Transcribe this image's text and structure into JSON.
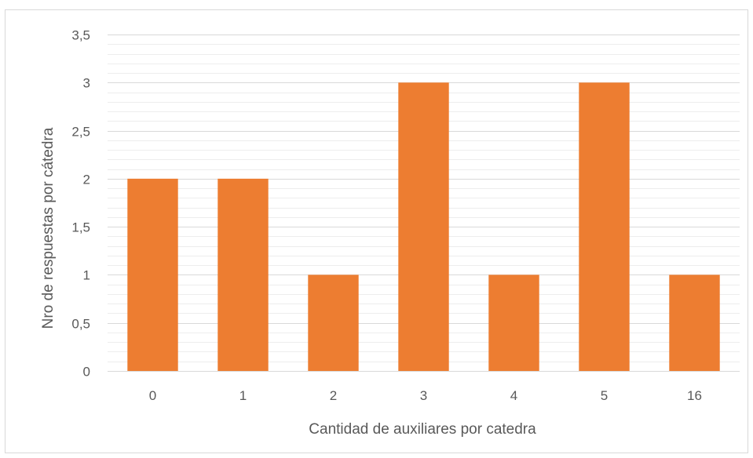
{
  "chart_data": {
    "type": "bar",
    "title": "",
    "xlabel": "Cantidad de auxiliares por catedra",
    "ylabel": "Nro de respuestas por cátedra",
    "categories": [
      "0",
      "1",
      "2",
      "3",
      "4",
      "5",
      "16"
    ],
    "values": [
      2,
      2,
      1,
      3,
      1,
      3,
      1
    ],
    "ylim": [
      0,
      3.5
    ],
    "y_major_ticks": [
      0,
      0.5,
      1,
      1.5,
      2,
      2.5,
      3,
      3.5
    ],
    "y_tick_labels": [
      "0",
      "0,5",
      "1",
      "1,5",
      "2",
      "2,5",
      "3",
      "3,5"
    ],
    "y_minor_step": 0.1,
    "grid": true,
    "legend": "none",
    "bar_color": "#ED7D31",
    "major_grid_color": "#D9D9D9",
    "minor_grid_color": "#EDEDED"
  }
}
